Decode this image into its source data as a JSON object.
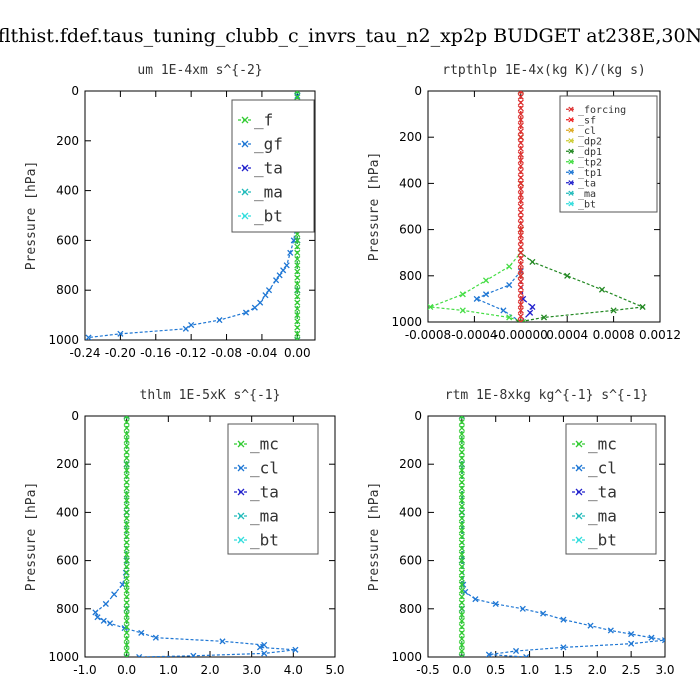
{
  "figure": {
    "title": "flthist.fdef.taus_tuning_clubb_c_invrs_tau_n2_xp2p  BUDGET at238E,30N"
  },
  "chart_data": [
    {
      "type": "line",
      "title": "um   1E-4xm  s^{-2}",
      "ylabel": "Pressure [hPa]",
      "xlim": [
        -0.24,
        0.02
      ],
      "ylim": [
        1000,
        0
      ],
      "xticks": [
        -0.24,
        -0.2,
        -0.16,
        -0.12,
        -0.08,
        -0.04,
        0.0
      ],
      "xtick_labels": [
        "-0.24",
        "-0.20",
        "-0.16",
        "-0.12",
        "-0.08",
        "-0.04",
        "0.00"
      ],
      "yticks": [
        0,
        200,
        400,
        600,
        800,
        1000
      ],
      "ytick_labels": [
        "0",
        "200",
        "400",
        "600",
        "800",
        "1000"
      ],
      "legend_position": "top-right",
      "series": [
        {
          "name": "_f",
          "color": "#33cc33",
          "marker": "x",
          "x": [
            0,
            0,
            0,
            0,
            0,
            0,
            0,
            0,
            0,
            0,
            0,
            0,
            0,
            0,
            0,
            0,
            0,
            0,
            0,
            0,
            0,
            0,
            0,
            0,
            0,
            0,
            0,
            0,
            0,
            0,
            0,
            0,
            0,
            0,
            0,
            0,
            0,
            0,
            0,
            0,
            0
          ],
          "y": [
            0,
            25,
            50,
            75,
            100,
            125,
            150,
            175,
            200,
            225,
            250,
            275,
            300,
            325,
            350,
            375,
            400,
            425,
            450,
            475,
            500,
            525,
            550,
            575,
            600,
            625,
            650,
            675,
            700,
            725,
            750,
            775,
            800,
            825,
            850,
            875,
            900,
            925,
            950,
            975,
            1000
          ]
        },
        {
          "name": "_gf",
          "color": "#1f77d4",
          "marker": "x",
          "x": [
            0.0,
            0.001,
            0.002,
            0.003,
            0.001,
            0.0,
            -0.001,
            -0.002,
            -0.004,
            -0.008,
            -0.012,
            -0.016,
            -0.02,
            -0.024,
            -0.032,
            -0.036,
            -0.042,
            -0.048,
            -0.058,
            -0.088,
            -0.12,
            -0.126,
            -0.2,
            -0.236
          ],
          "y": [
            20,
            100,
            200,
            230,
            300,
            400,
            500,
            550,
            600,
            650,
            700,
            720,
            740,
            760,
            800,
            820,
            850,
            870,
            890,
            920,
            940,
            955,
            975,
            990
          ]
        },
        {
          "name": "_ta",
          "color": "#2222cc",
          "marker": "x",
          "x": [
            0.0,
            0.0,
            0.0,
            0.0,
            0.0,
            0.0
          ],
          "y": [
            0,
            200,
            400,
            600,
            800,
            1000
          ]
        },
        {
          "name": "_ma",
          "color": "#22bbbb",
          "marker": "x",
          "x": [
            0.0,
            0.0,
            0.0,
            0.0,
            0.0,
            0.0
          ],
          "y": [
            0,
            200,
            400,
            600,
            800,
            1000
          ]
        },
        {
          "name": "_bt",
          "color": "#33dddd",
          "marker": "x",
          "x": [
            0.0,
            0.0,
            0.0,
            0.0,
            0.0,
            0.0
          ],
          "y": [
            0,
            200,
            400,
            600,
            800,
            1000
          ]
        }
      ]
    },
    {
      "type": "line",
      "title": "rtpthlp   1E-4x(kg K)/(kg s)",
      "ylabel": "Pressure [hPa]",
      "xlim": [
        -0.0008,
        0.0012
      ],
      "ylim": [
        1000,
        0
      ],
      "xticks": [
        -0.0008,
        -0.0004,
        0.0,
        0.0004,
        0.0008,
        0.0012
      ],
      "xtick_labels": [
        "-0.0008",
        "-0.0004",
        "-0.00000",
        "0.0004",
        "0.0008",
        "0.0012"
      ],
      "yticks": [
        0,
        200,
        400,
        600,
        800,
        1000
      ],
      "ytick_labels": [
        "0",
        "200",
        "400",
        "600",
        "800",
        "1000"
      ],
      "legend_position": "top-right",
      "series": [
        {
          "name": "_forcing",
          "color": "#dd3333",
          "marker": "x",
          "x": [
            0,
            0,
            0,
            0,
            0,
            0,
            0,
            0,
            0,
            0,
            0,
            0,
            0,
            0,
            0,
            0,
            0,
            0,
            0,
            0,
            0,
            0,
            0,
            0,
            0,
            0,
            0,
            0,
            0,
            0,
            0,
            0,
            0,
            0,
            0,
            0,
            0,
            0,
            0,
            0,
            0
          ],
          "y": [
            0,
            25,
            50,
            75,
            100,
            125,
            150,
            175,
            200,
            225,
            250,
            275,
            300,
            325,
            350,
            375,
            400,
            425,
            450,
            475,
            500,
            525,
            550,
            575,
            600,
            625,
            650,
            675,
            700,
            725,
            750,
            775,
            800,
            825,
            850,
            875,
            900,
            925,
            950,
            975,
            1000
          ]
        },
        {
          "name": "_sf",
          "color": "#ee2222",
          "marker": "x",
          "x": [
            0,
            0,
            0,
            0,
            0,
            0
          ],
          "y": [
            0,
            200,
            400,
            600,
            800,
            1000
          ]
        },
        {
          "name": "_cl",
          "color": "#ddaa22",
          "marker": "x",
          "x": [
            0,
            0,
            0,
            0,
            0,
            0
          ],
          "y": [
            0,
            200,
            400,
            600,
            800,
            1000
          ]
        },
        {
          "name": "_dp2",
          "color": "#cccc33",
          "marker": "x",
          "x": [
            0,
            0,
            0,
            0,
            0,
            0
          ],
          "y": [
            0,
            200,
            400,
            600,
            800,
            1000
          ]
        },
        {
          "name": "_dp1",
          "color": "#228822",
          "marker": "x",
          "x": [
            0.0,
            0.0,
            0.0001,
            0.0004,
            0.0007,
            0.00105,
            0.0008,
            0.0002,
            -2e-05
          ],
          "y": [
            0,
            700,
            740,
            800,
            860,
            935,
            950,
            980,
            1000
          ]
        },
        {
          "name": "_tp2",
          "color": "#44dd44",
          "marker": "x",
          "x": [
            0.0,
            0.0,
            -0.0001,
            -0.0003,
            -0.0005,
            -0.00078,
            -0.0005,
            -0.0001,
            2e-05
          ],
          "y": [
            0,
            700,
            760,
            820,
            880,
            935,
            950,
            980,
            1000
          ]
        },
        {
          "name": "_tp1",
          "color": "#1f77d4",
          "marker": "x",
          "x": [
            0.0,
            0.0,
            -0.0001,
            -0.0003,
            -0.00038,
            -0.00015,
            0.0
          ],
          "y": [
            0,
            780,
            840,
            880,
            900,
            950,
            1000
          ]
        },
        {
          "name": "_ta",
          "color": "#2222cc",
          "marker": "x",
          "x": [
            0.0,
            0.0,
            2e-05,
            0.0001,
            8e-05,
            0.0
          ],
          "y": [
            0,
            800,
            900,
            935,
            960,
            1000
          ]
        },
        {
          "name": "_ma",
          "color": "#22bbbb",
          "marker": "x",
          "x": [
            0,
            0,
            0,
            0,
            0,
            0
          ],
          "y": [
            0,
            200,
            400,
            600,
            800,
            1000
          ]
        },
        {
          "name": "_bt",
          "color": "#33dddd",
          "marker": "x",
          "x": [
            0,
            0,
            0,
            0,
            0,
            0
          ],
          "y": [
            0,
            200,
            400,
            600,
            800,
            1000
          ]
        }
      ]
    },
    {
      "type": "line",
      "title": "thlm   1E-5xK  s^{-1}",
      "ylabel": "Pressure [hPa]",
      "xlim": [
        -1.0,
        5.0
      ],
      "ylim": [
        1000,
        0
      ],
      "xticks": [
        -1.0,
        0.0,
        1.0,
        2.0,
        3.0,
        4.0,
        5.0
      ],
      "xtick_labels": [
        "-1.0",
        "0.0",
        "1.0",
        "2.0",
        "3.0",
        "4.0",
        "5.0"
      ],
      "yticks": [
        0,
        200,
        400,
        600,
        800,
        1000
      ],
      "ytick_labels": [
        "0",
        "200",
        "400",
        "600",
        "800",
        "1000"
      ],
      "legend_position": "top-right",
      "series": [
        {
          "name": "_mc",
          "color": "#33cc33",
          "marker": "x",
          "x": [
            0,
            0,
            0,
            0,
            0,
            0,
            0,
            0,
            0,
            0,
            0,
            0,
            0,
            0,
            0,
            0,
            0,
            0,
            0,
            0,
            0,
            0,
            0,
            0,
            0,
            0,
            0,
            0,
            0,
            0,
            0,
            0,
            0,
            0,
            0,
            0,
            0,
            0,
            0,
            0,
            0
          ],
          "y": [
            0,
            25,
            50,
            75,
            100,
            125,
            150,
            175,
            200,
            225,
            250,
            275,
            300,
            325,
            350,
            375,
            400,
            425,
            450,
            475,
            500,
            525,
            550,
            575,
            600,
            625,
            650,
            675,
            700,
            725,
            750,
            775,
            800,
            825,
            850,
            875,
            900,
            925,
            950,
            975,
            1000
          ]
        },
        {
          "name": "_cl",
          "color": "#1f77d4",
          "marker": "x",
          "x": [
            0.0,
            -0.02,
            -0.1,
            -0.3,
            -0.5,
            -0.75,
            -0.7,
            -0.55,
            -0.4,
            -0.05,
            0.35,
            0.7,
            2.3,
            3.3,
            3.2,
            4.05,
            3.3,
            1.6,
            0.3
          ],
          "y": [
            0,
            650,
            700,
            740,
            780,
            815,
            835,
            850,
            860,
            880,
            900,
            920,
            935,
            950,
            960,
            970,
            985,
            995,
            1000
          ]
        },
        {
          "name": "_ta",
          "color": "#2222cc",
          "marker": "x",
          "x": [
            0,
            0,
            0,
            0,
            0,
            0
          ],
          "y": [
            0,
            200,
            400,
            600,
            800,
            1000
          ]
        },
        {
          "name": "_ma",
          "color": "#22bbbb",
          "marker": "x",
          "x": [
            0,
            0,
            0,
            0,
            0,
            0
          ],
          "y": [
            0,
            200,
            400,
            600,
            800,
            1000
          ]
        },
        {
          "name": "_bt",
          "color": "#33dddd",
          "marker": "x",
          "x": [
            0,
            0,
            0,
            0,
            0,
            0
          ],
          "y": [
            0,
            200,
            400,
            600,
            800,
            1000
          ]
        }
      ]
    },
    {
      "type": "line",
      "title": "rtm   1E-8xkg  kg^{-1}  s^{-1}",
      "ylabel": "Pressure [hPa]",
      "xlim": [
        -0.5,
        3.0
      ],
      "ylim": [
        1000,
        0
      ],
      "xticks": [
        -0.5,
        0.0,
        0.5,
        1.0,
        1.5,
        2.0,
        2.5,
        3.0
      ],
      "xtick_labels": [
        "-0.5",
        "0.0",
        "0.5",
        "1.0",
        "1.5",
        "2.0",
        "2.5",
        "3.0"
      ],
      "yticks": [
        0,
        200,
        400,
        600,
        800,
        1000
      ],
      "ytick_labels": [
        "0",
        "200",
        "400",
        "600",
        "800",
        "1000"
      ],
      "legend_position": "top-right",
      "series": [
        {
          "name": "_mc",
          "color": "#33cc33",
          "marker": "x",
          "x": [
            0,
            0,
            0,
            0,
            0,
            0,
            0,
            0,
            0,
            0,
            0,
            0,
            0,
            0,
            0,
            0,
            0,
            0,
            0,
            0,
            0,
            0,
            0,
            0,
            0,
            0,
            0,
            0,
            0,
            0,
            0,
            0,
            0,
            0,
            0,
            0,
            0,
            0,
            0,
            0,
            0
          ],
          "y": [
            0,
            25,
            50,
            75,
            100,
            125,
            150,
            175,
            200,
            225,
            250,
            275,
            300,
            325,
            350,
            375,
            400,
            425,
            450,
            475,
            500,
            525,
            550,
            575,
            600,
            625,
            650,
            675,
            700,
            725,
            750,
            775,
            800,
            825,
            850,
            875,
            900,
            925,
            950,
            975,
            1000
          ]
        },
        {
          "name": "_cl",
          "color": "#1f77d4",
          "marker": "x",
          "x": [
            0.0,
            0.02,
            0.05,
            0.2,
            0.5,
            0.9,
            1.2,
            1.5,
            1.9,
            2.2,
            2.5,
            2.8,
            3.0,
            2.5,
            1.5,
            0.8,
            0.4,
            0.95
          ],
          "y": [
            0,
            700,
            730,
            760,
            780,
            800,
            820,
            845,
            870,
            890,
            905,
            920,
            930,
            945,
            960,
            975,
            990,
            1000
          ]
        },
        {
          "name": "_ta",
          "color": "#2222cc",
          "marker": "x",
          "x": [
            0,
            0,
            0,
            0,
            0,
            0
          ],
          "y": [
            0,
            200,
            400,
            600,
            800,
            1000
          ]
        },
        {
          "name": "_ma",
          "color": "#22bbbb",
          "marker": "x",
          "x": [
            0,
            0,
            0,
            0,
            0,
            0
          ],
          "y": [
            0,
            200,
            400,
            600,
            800,
            1000
          ]
        },
        {
          "name": "_bt",
          "color": "#33dddd",
          "marker": "x",
          "x": [
            0,
            0,
            0,
            0,
            0,
            0
          ],
          "y": [
            0,
            200,
            400,
            600,
            800,
            1000
          ]
        }
      ]
    }
  ]
}
